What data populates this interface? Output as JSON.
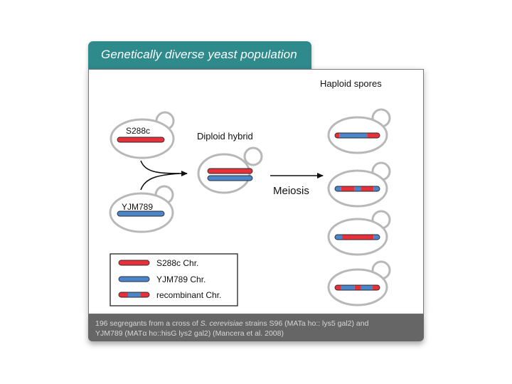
{
  "header": {
    "title": "Genetically diverse yeast population"
  },
  "diagram": {
    "parent_1_label": "S288c",
    "parent_2_label": "YJM789",
    "hybrid_label": "Diploid hybrid",
    "process_label": "Meiosis",
    "spores_label": "Haploid spores"
  },
  "legend": {
    "items": [
      {
        "label": "S288c Chr."
      },
      {
        "label": "YJM789 Chr."
      },
      {
        "label": "recombinant Chr."
      }
    ]
  },
  "footer": {
    "line1_pre": "196 segregants from a cross of ",
    "line1_species": "S. cerevisiae",
    "line1_post": " strains S96 (MATa ho:: lys5 gal2) and",
    "line2": "YJM789 (MATα ho::hisG lys2 gal2) (Mancera et al. 2008)"
  },
  "colors": {
    "accent": "#2f8a8c",
    "s288c": "#e8303a",
    "yjm789": "#4a86c9",
    "cell_outline": "#b8b8b8",
    "footer_bg": "#666666"
  }
}
